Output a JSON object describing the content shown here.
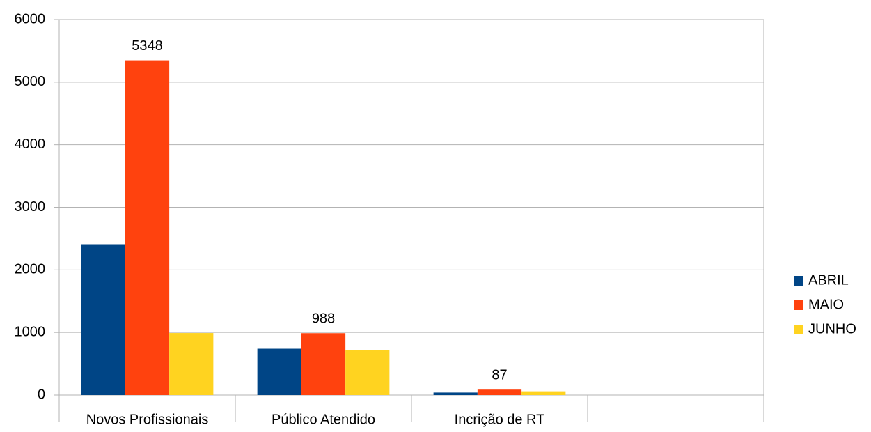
{
  "chart_data": {
    "type": "bar",
    "categories": [
      "Novos Profissionais",
      "Público Atendido",
      "Incrição de RT",
      null
    ],
    "series": [
      {
        "name": "ABRIL",
        "color": "#004586",
        "values": [
          2410,
          740,
          40,
          null
        ]
      },
      {
        "name": "MAIO",
        "color": "#ff420e",
        "values": [
          5348,
          988,
          87,
          null
        ],
        "show_labels": true
      },
      {
        "name": "JUNHO",
        "color": "#ffd320",
        "values": [
          990,
          720,
          60,
          null
        ]
      }
    ],
    "ylim": [
      0,
      6000
    ],
    "yticks": [
      0,
      1000,
      2000,
      3000,
      4000,
      5000,
      6000
    ],
    "grid": true,
    "legend": "right"
  }
}
